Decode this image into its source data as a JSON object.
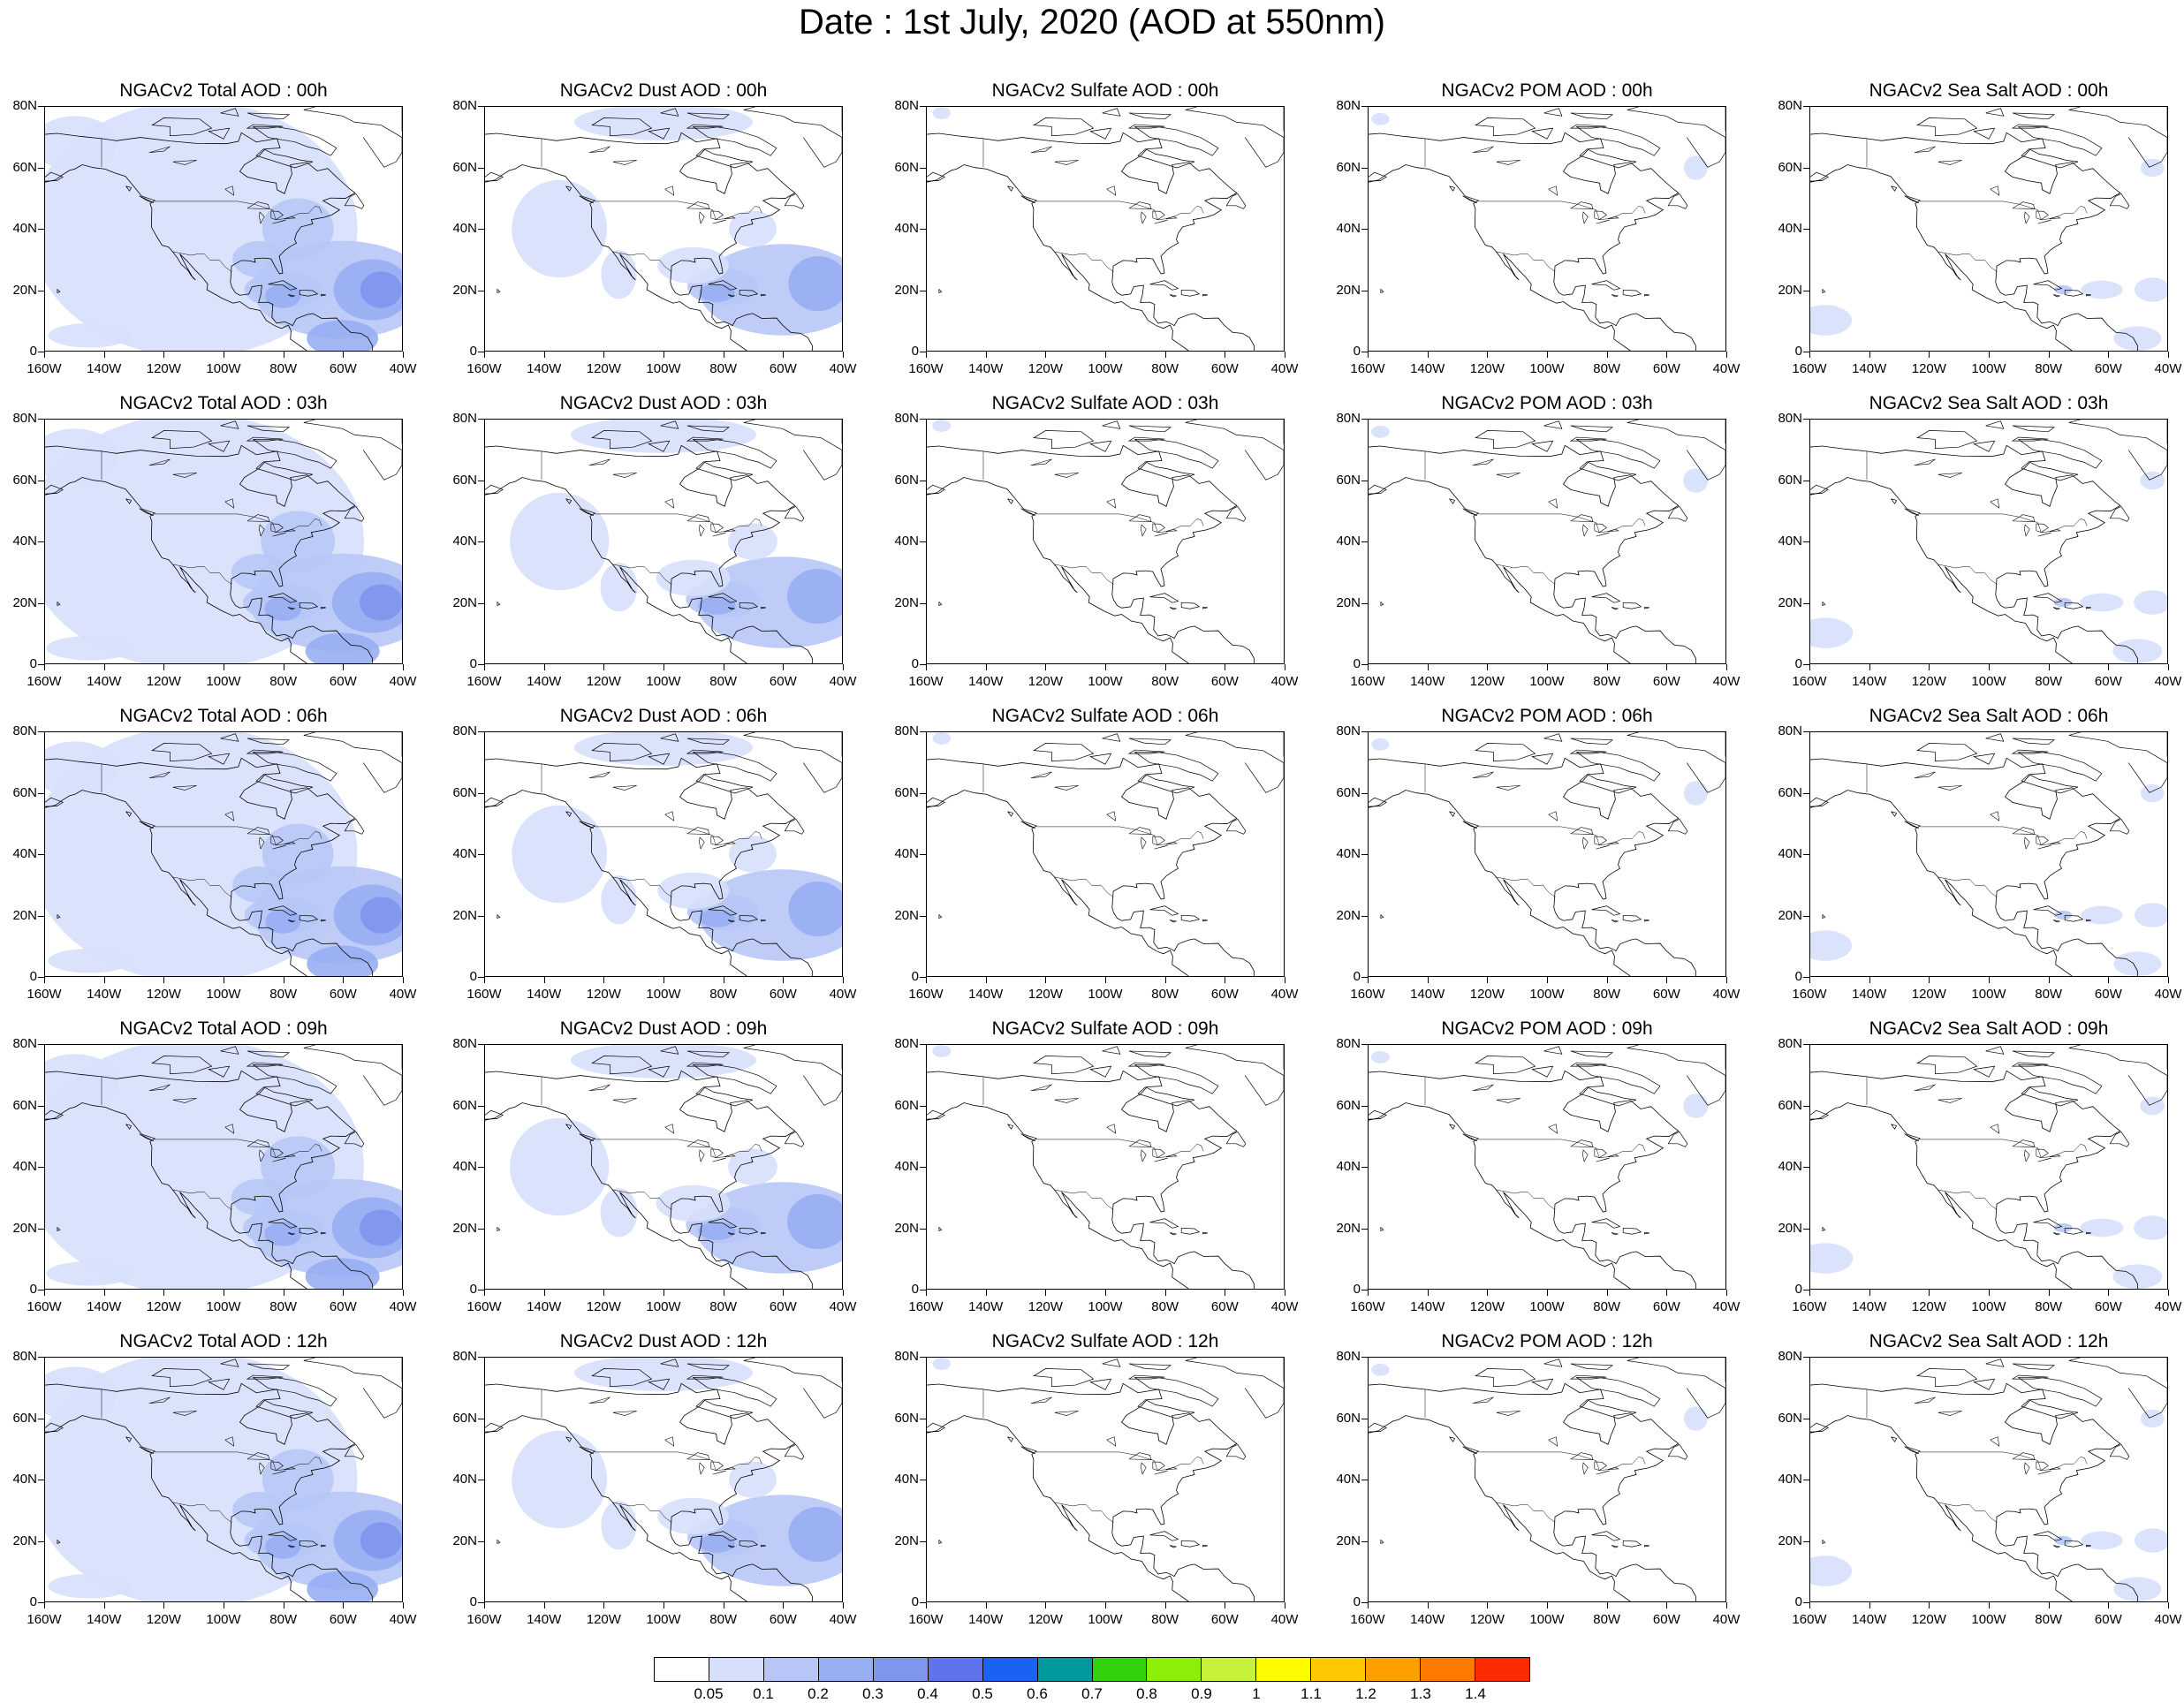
{
  "title": "Date : 1st July, 2020 (AOD at 550nm)",
  "columns": [
    {
      "species": "total",
      "titles": [
        "NGACv2 Total AOD : 00h",
        "NGACv2 Total AOD : 03h",
        "NGACv2 Total AOD : 06h",
        "NGACv2 Total AOD : 09h",
        "NGACv2 Total AOD  : 12h"
      ]
    },
    {
      "species": "dust",
      "titles": [
        "NGACv2 Dust AOD : 00h",
        "NGACv2 Dust AOD : 03h",
        "NGACv2 Dust AOD : 06h",
        "NGACv2 Dust AOD : 09h",
        "NGACv2 Dust AOD : 12h"
      ]
    },
    {
      "species": "sulfate",
      "titles": [
        "NGACv2 Sulfate AOD : 00h",
        "NGACv2 Sulfate AOD : 03h",
        "NGACv2 Sulfate AOD : 06h",
        "NGACv2 Sulfate AOD : 09h",
        "NGACv2 Sulfate AOD : 12h"
      ]
    },
    {
      "species": "pom",
      "titles": [
        "NGACv2 POM AOD : 00h",
        "NGACv2 POM AOD : 03h",
        "NGACv2 POM AOD : 06h",
        "NGACv2 POM AOD : 09h",
        "NGACv2 POM  AOD : 12h"
      ]
    },
    {
      "species": "seasalt",
      "titles": [
        "NGACv2 Sea Salt AOD : 00h",
        "NGACv2 Sea Salt AOD : 03h",
        "NGACv2 Sea Salt AOD : 06h",
        "NGACv2 Sea Salt  AOD : 09h",
        "NGACv2 Sea Salt  AOD : 12h"
      ]
    }
  ],
  "axes": {
    "lat_labels": [
      "80N",
      "60N",
      "40N",
      "20N",
      "0"
    ],
    "lon_labels": [
      "160W",
      "140W",
      "120W",
      "100W",
      "80W",
      "60W",
      "40W"
    ]
  },
  "colorbar": {
    "labels": [
      "0.05",
      "0.1",
      "0.2",
      "0.3",
      "0.4",
      "0.5",
      "0.6",
      "0.7",
      "0.8",
      "0.9",
      "1",
      "1.1",
      "1.2",
      "1.3",
      "1.4"
    ],
    "colors": [
      "#ffffff",
      "#d6e0fb",
      "#b7c6f6",
      "#98aef2",
      "#7f96ee",
      "#5f73ec",
      "#1a62f2",
      "#009a9c",
      "#32d20f",
      "#8cf00a",
      "#c6f23e",
      "#fffc00",
      "#ffc800",
      "#ff9f00",
      "#ff7a00",
      "#fe2a00"
    ]
  }
}
